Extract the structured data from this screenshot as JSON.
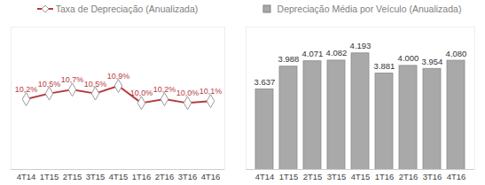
{
  "chart_data": [
    {
      "type": "line",
      "title": "Taxa de Depreciação (Anualizada)",
      "categories": [
        "4T14",
        "1T15",
        "2T15",
        "3T15",
        "4T15",
        "1T16",
        "2T16",
        "3T16",
        "4T16"
      ],
      "values": [
        10.2,
        10.5,
        10.7,
        10.5,
        10.9,
        10.0,
        10.2,
        10.0,
        10.1
      ],
      "value_labels": [
        "10,2%",
        "10,5%",
        "10,7%",
        "10,5%",
        "10,9%",
        "10,0%",
        "10,2%",
        "10,0%",
        "10,1%"
      ],
      "color": "#b83a3f",
      "marker": "diamond",
      "ylim": [
        6.5,
        14
      ],
      "data_labels": true,
      "tick_labels": "x"
    },
    {
      "type": "bar",
      "title": "Depreciação Média por Veículo (Anualizada)",
      "categories": [
        "4T14",
        "1T15",
        "2T15",
        "3T15",
        "4T15",
        "1T16",
        "2T16",
        "3T16",
        "4T16"
      ],
      "values": [
        3637,
        3988,
        4071,
        4082,
        4193,
        3881,
        4000,
        3954,
        4080
      ],
      "value_labels": [
        "3.637",
        "3.988",
        "4.071",
        "4.082",
        "4.193",
        "3.881",
        "4.000",
        "3.954",
        "4.080"
      ],
      "color": "#a9a9a9",
      "ylim": [
        2400,
        4600
      ],
      "data_labels": true,
      "tick_labels": "x"
    }
  ]
}
